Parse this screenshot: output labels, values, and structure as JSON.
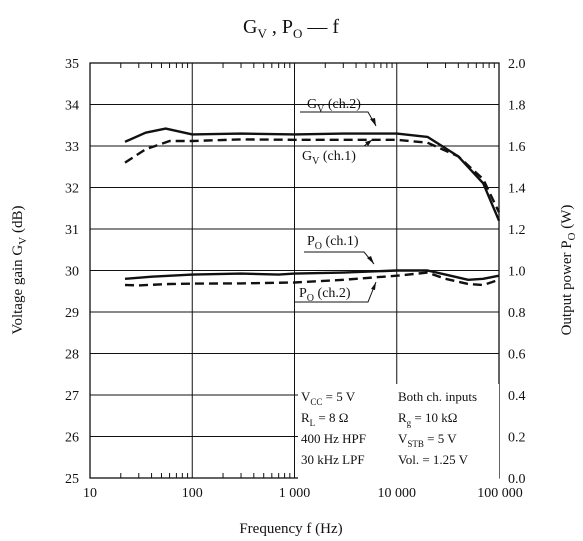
{
  "chart_data": {
    "type": "line",
    "title": {
      "main": "G",
      "sub": "V",
      "sep": " , ",
      "main2": "P",
      "sub2": "O",
      "tail": " — f"
    },
    "xlabel": "Frequency  f  (Hz)",
    "ylabel_left": {
      "main": "Voltage gain  G",
      "sub": "V",
      "tail": "  (dB)"
    },
    "ylabel_right": {
      "main": "Output power  P",
      "sub": "O",
      "tail": "  (W)"
    },
    "x_scale": "log",
    "xlim": [
      10,
      100000
    ],
    "ylim_left": [
      25,
      35
    ],
    "ylim_right": [
      0.0,
      2.0
    ],
    "grid": true,
    "x_ticks": [
      {
        "value": 10,
        "label": "10"
      },
      {
        "value": 100,
        "label": "100"
      },
      {
        "value": 1000,
        "label": "1 000"
      },
      {
        "value": 10000,
        "label": "10 000"
      },
      {
        "value": 100000,
        "label": "100 000"
      }
    ],
    "y_ticks_left": [
      "25",
      "26",
      "27",
      "28",
      "29",
      "30",
      "31",
      "32",
      "33",
      "34",
      "35"
    ],
    "y_ticks_right": [
      "0.0",
      "0.2",
      "0.4",
      "0.6",
      "0.8",
      "1.0",
      "1.2",
      "1.4",
      "1.6",
      "1.8",
      "2.0"
    ],
    "series": [
      {
        "name": "GV (ch.2)",
        "label_main": "G",
        "label_sub": "V",
        "label_tail": " (ch.2)",
        "axis": "left",
        "style": "solid",
        "x": [
          22,
          35,
          55,
          100,
          300,
          1000,
          3000,
          10000,
          20000,
          40000,
          70000,
          100000
        ],
        "y": [
          33.1,
          33.32,
          33.42,
          33.28,
          33.3,
          33.28,
          33.3,
          33.3,
          33.22,
          32.75,
          32.1,
          31.2
        ]
      },
      {
        "name": "GV (ch.1)",
        "label_main": "G",
        "label_sub": "V",
        "label_tail": " (ch.1)",
        "axis": "left",
        "style": "dashed",
        "x": [
          22,
          35,
          60,
          100,
          300,
          1000,
          3000,
          10000,
          20000,
          40000,
          70000,
          100000
        ],
        "y": [
          32.6,
          32.92,
          33.12,
          33.12,
          33.16,
          33.15,
          33.15,
          33.15,
          33.08,
          32.75,
          32.2,
          31.4
        ]
      },
      {
        "name": "PO (ch.1)",
        "label_main": "P",
        "label_sub": "O",
        "label_tail": " (ch.1)",
        "axis": "right",
        "style": "solid",
        "x": [
          22,
          40,
          100,
          300,
          700,
          1000,
          3000,
          10000,
          20000,
          30000,
          50000,
          70000,
          100000
        ],
        "y": [
          0.96,
          0.97,
          0.98,
          0.985,
          0.98,
          0.985,
          0.99,
          1.0,
          1.0,
          0.98,
          0.955,
          0.96,
          0.975
        ]
      },
      {
        "name": "PO (ch.2)",
        "label_main": "P",
        "label_sub": "O",
        "label_tail": " (ch.2)",
        "axis": "right",
        "style": "dashed",
        "x": [
          22,
          30,
          60,
          100,
          300,
          1000,
          3000,
          10000,
          20000,
          30000,
          50000,
          70000,
          100000
        ],
        "y": [
          0.93,
          0.928,
          0.935,
          0.937,
          0.938,
          0.942,
          0.955,
          0.975,
          0.99,
          0.96,
          0.935,
          0.93,
          0.955
        ]
      }
    ],
    "conditions": [
      {
        "main": "V",
        "sub": "CC",
        "tail": " = 5 V"
      },
      {
        "main": "R",
        "sub": "L",
        "tail": " = 8 Ω"
      },
      {
        "main": "400 Hz HPF",
        "sub": "",
        "tail": ""
      },
      {
        "main": "30 kHz LPF",
        "sub": "",
        "tail": ""
      }
    ],
    "conditions2": [
      {
        "main": "Both ch. inputs",
        "sub": "",
        "tail": ""
      },
      {
        "main": "R",
        "sub": "g",
        "tail": " = 10 kΩ"
      },
      {
        "main": "V",
        "sub": "STB",
        "tail": " = 5 V"
      },
      {
        "main": "Vol. = 1.25 V",
        "sub": "",
        "tail": ""
      }
    ]
  }
}
